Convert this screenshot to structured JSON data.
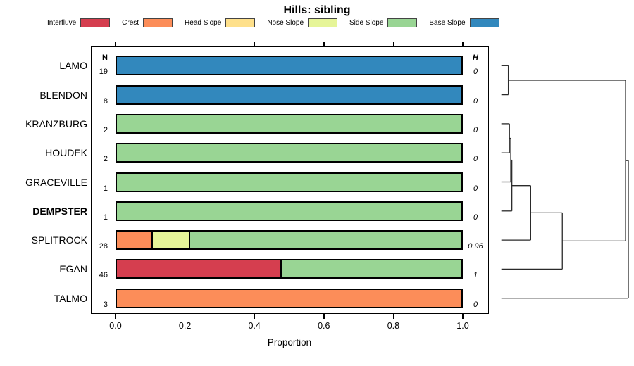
{
  "title": "Hills: sibling",
  "legend": {
    "items": [
      {
        "label": "Interfluve",
        "color": "#D53E4F"
      },
      {
        "label": "Crest",
        "color": "#FC8D59"
      },
      {
        "label": "Head Slope",
        "color": "#FEE08B"
      },
      {
        "label": "Nose Slope",
        "color": "#E6F598"
      },
      {
        "label": "Side Slope",
        "color": "#99D594"
      },
      {
        "label": "Base Slope",
        "color": "#3288BD"
      }
    ]
  },
  "columns": {
    "n_header": "N",
    "h_header": "H"
  },
  "axis": {
    "xlabel": "Proportion",
    "ticks": [
      {
        "label": "0.0",
        "value": 0.0
      },
      {
        "label": "0.2",
        "value": 0.2
      },
      {
        "label": "0.4",
        "value": 0.4
      },
      {
        "label": "0.6",
        "value": 0.6
      },
      {
        "label": "0.8",
        "value": 0.8
      },
      {
        "label": "1.0",
        "value": 1.0
      }
    ]
  },
  "chart_data": {
    "type": "bar",
    "orientation": "horizontal",
    "stacked": true,
    "title": "Hills: sibling",
    "xlabel": "Proportion",
    "xlim": [
      0,
      1
    ],
    "legend_position": "top",
    "categories": [
      "LAMO",
      "BLENDON",
      "KRANZBURG",
      "HOUDEK",
      "GRACEVILLE",
      "DEMPSTER",
      "SPLITROCK",
      "EGAN",
      "TALMO"
    ],
    "rows": [
      {
        "label": "LAMO",
        "n": "19",
        "h": "0",
        "bold": false,
        "segments": [
          {
            "class": "Base Slope",
            "value": 1.0
          }
        ]
      },
      {
        "label": "BLENDON",
        "n": "8",
        "h": "0",
        "bold": false,
        "segments": [
          {
            "class": "Base Slope",
            "value": 1.0
          }
        ]
      },
      {
        "label": "KRANZBURG",
        "n": "2",
        "h": "0",
        "bold": false,
        "segments": [
          {
            "class": "Side Slope",
            "value": 1.0
          }
        ]
      },
      {
        "label": "HOUDEK",
        "n": "2",
        "h": "0",
        "bold": false,
        "segments": [
          {
            "class": "Side Slope",
            "value": 1.0
          }
        ]
      },
      {
        "label": "GRACEVILLE",
        "n": "1",
        "h": "0",
        "bold": false,
        "segments": [
          {
            "class": "Side Slope",
            "value": 1.0
          }
        ]
      },
      {
        "label": "DEMPSTER",
        "n": "1",
        "h": "0",
        "bold": true,
        "segments": [
          {
            "class": "Side Slope",
            "value": 1.0
          }
        ]
      },
      {
        "label": "SPLITROCK",
        "n": "28",
        "h": "0.96",
        "bold": false,
        "segments": [
          {
            "class": "Crest",
            "value": 0.107
          },
          {
            "class": "Nose Slope",
            "value": 0.107
          },
          {
            "class": "Side Slope",
            "value": 0.786
          }
        ]
      },
      {
        "label": "EGAN",
        "n": "46",
        "h": "1",
        "bold": false,
        "segments": [
          {
            "class": "Interfluve",
            "value": 0.478
          },
          {
            "class": "Side Slope",
            "value": 0.522
          }
        ]
      },
      {
        "label": "TALMO",
        "n": "3",
        "h": "0",
        "bold": false,
        "segments": [
          {
            "class": "Crest",
            "value": 1.0
          }
        ]
      }
    ],
    "dendrogram": {
      "leaf_order": [
        "LAMO",
        "BLENDON",
        "KRANZBURG",
        "HOUDEK",
        "GRACEVILLE",
        "DEMPSTER",
        "SPLITROCK",
        "EGAN",
        "TALMO"
      ],
      "merges": [
        {
          "id": "M0",
          "a": "L0",
          "b": "L1",
          "h": 0.055
        },
        {
          "id": "M1",
          "a": "L2",
          "b": "L3",
          "h": 0.064
        },
        {
          "id": "M2",
          "a": "M1",
          "b": "L4",
          "h": 0.074
        },
        {
          "id": "M3",
          "a": "M2",
          "b": "L5",
          "h": 0.083
        },
        {
          "id": "M4",
          "a": "M3",
          "b": "L6",
          "h": 0.231
        },
        {
          "id": "M5",
          "a": "M4",
          "b": "L7",
          "h": 0.48
        },
        {
          "id": "M6",
          "a": "M0",
          "b": "M5",
          "h": 0.978
        },
        {
          "id": "M7",
          "a": "M6",
          "b": "L8",
          "h": 1.0
        }
      ]
    }
  }
}
